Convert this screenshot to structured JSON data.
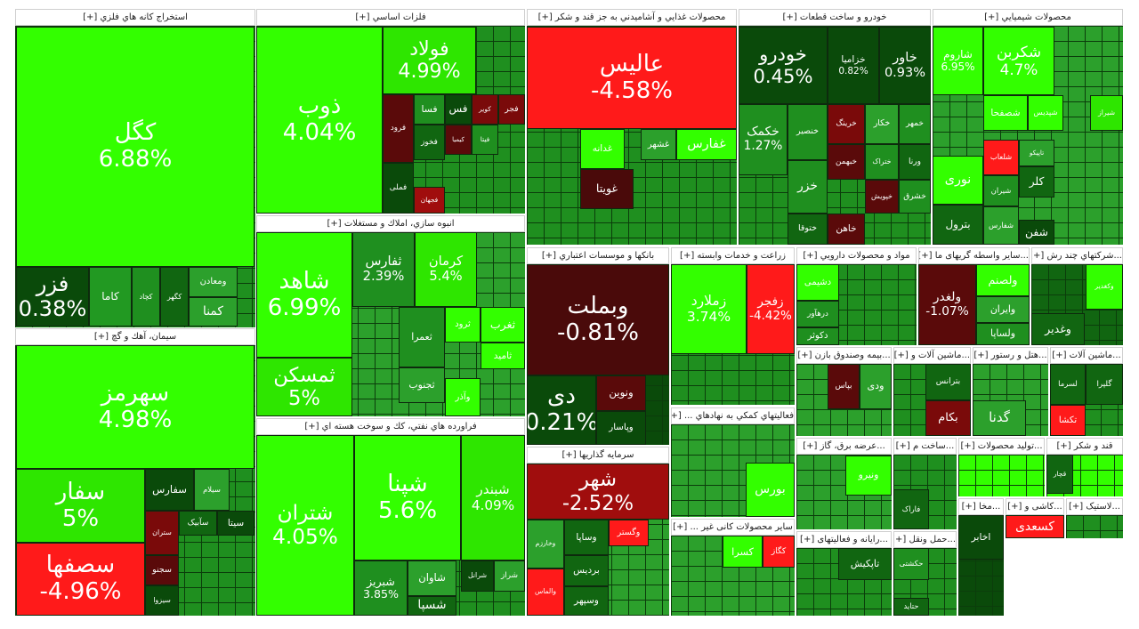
{
  "sectors": [
    {
      "title": "استخراج کانه هاي فلزي [+]",
      "tiles": [
        {
          "symbol": "کگل",
          "change": "6.88%",
          "color": "#33ff00"
        },
        {
          "symbol": "فزر",
          "change": "0.38%",
          "color": "#0a4a0a"
        },
        {
          "symbol": "کاما",
          "color": "#229922"
        },
        {
          "symbol": "کچاد",
          "color": "#1f8f1f"
        },
        {
          "symbol": "کگهر",
          "color": "#116611"
        },
        {
          "symbol": "ومعادن",
          "color": "#2ca02c"
        },
        {
          "symbol": "کمنا",
          "color": "#2ca02c"
        }
      ]
    },
    {
      "title": "سيمان، آهك و گچ [+]",
      "tiles": [
        {
          "symbol": "سهرمز",
          "change": "4.98%",
          "color": "#33ff00"
        },
        {
          "symbol": "سفار",
          "change": "5%",
          "color": "#2ee600"
        },
        {
          "symbol": "سصفها",
          "change": "-4.96%",
          "color": "#ff1a1a"
        },
        {
          "symbol": "سفارس",
          "color": "#0a4a0a"
        },
        {
          "symbol": "سیلام",
          "color": "#2ca02c"
        },
        {
          "symbol": "ستران",
          "color": "#7a0a0a"
        },
        {
          "symbol": "سآبیک",
          "color": "#116611"
        },
        {
          "symbol": "سیتا",
          "color": "#0a4a0a"
        },
        {
          "symbol": "سجنو",
          "color": "#5a0a0a"
        },
        {
          "symbol": "سیزوا",
          "color": "#0a4a0a"
        }
      ]
    },
    {
      "title": "فلزات اساسي [+]",
      "tiles": [
        {
          "symbol": "ذوب",
          "change": "4.04%",
          "color": "#33ff00"
        },
        {
          "symbol": "فولاد",
          "change": "4.99%",
          "color": "#2ee600"
        },
        {
          "symbol": "فرود",
          "color": "#5a0a0a"
        },
        {
          "symbol": "فسا",
          "color": "#1f8f1f"
        },
        {
          "symbol": "فخوز",
          "color": "#116611"
        },
        {
          "symbol": "فملی",
          "color": "#0a4a0a"
        },
        {
          "symbol": "فجهان",
          "color": "#a00d0d"
        },
        {
          "symbol": "فس",
          "color": "#0a4a0a"
        },
        {
          "symbol": "کویر",
          "color": "#7a0a0a"
        },
        {
          "symbol": "فجر",
          "color": "#7a0a0a"
        },
        {
          "symbol": "کیمیا",
          "color": "#5a0a0a"
        },
        {
          "symbol": "فیتا",
          "color": "#1f8f1f"
        }
      ]
    },
    {
      "title": "انبوه سازي، املاك و مستغلات [+]",
      "tiles": [
        {
          "symbol": "شاهد",
          "change": "6.99%",
          "color": "#33ff00"
        },
        {
          "symbol": "ثمسکن",
          "change": "5%",
          "color": "#2ee600"
        },
        {
          "symbol": "ثفارس",
          "change": "2.39%",
          "color": "#1f8f1f"
        },
        {
          "symbol": "کرمان",
          "change": "5.4%",
          "color": "#2ee600"
        },
        {
          "symbol": "ثعمرا",
          "color": "#1f8f1f"
        },
        {
          "symbol": "ثرود",
          "color": "#33ff00"
        },
        {
          "symbol": "ثغرب",
          "color": "#33ff00"
        },
        {
          "symbol": "ثامید",
          "color": "#33ff00"
        },
        {
          "symbol": "ثجنوب",
          "color": "#2ca02c"
        },
        {
          "symbol": "وآذر",
          "color": "#33ff00"
        }
      ]
    },
    {
      "title": "فراورده هاي نفتي، كك و سوخت هسته اي [+]",
      "tiles": [
        {
          "symbol": "شتران",
          "change": "4.05%",
          "color": "#33ff00"
        },
        {
          "symbol": "شپنا",
          "change": "5.6%",
          "color": "#33ff00"
        },
        {
          "symbol": "شبندر",
          "change": "4.09%",
          "color": "#2ee600"
        },
        {
          "symbol": "شبریز",
          "change": "3.85%",
          "color": "#1f8f1f"
        },
        {
          "symbol": "شاوان",
          "color": "#2ca02c"
        },
        {
          "symbol": "شسپا",
          "color": "#116611"
        },
        {
          "symbol": "شرانل",
          "color": "#0a4a0a"
        },
        {
          "symbol": "شراز",
          "color": "#2ca02c"
        }
      ]
    },
    {
      "title": "محصولات غذايي و آشاميدني به جز قند و شكر [+]",
      "tiles": [
        {
          "symbol": "عالیس",
          "change": "-4.58%",
          "color": "#ff1a1a"
        },
        {
          "symbol": "غدانه",
          "color": "#33ff00"
        },
        {
          "symbol": "غشهر",
          "color": "#2ca02c"
        },
        {
          "symbol": "غفارس",
          "color": "#33ff00"
        },
        {
          "symbol": "غویتا",
          "color": "#4a0a0a"
        }
      ]
    },
    {
      "title": "خودرو و ساخت قطعات [+]",
      "tiles": [
        {
          "symbol": "خودرو",
          "change": "0.45%",
          "color": "#0a4a0a"
        },
        {
          "symbol": "خزامیا",
          "change": "0.82%",
          "color": "#0a4a0a"
        },
        {
          "symbol": "خاور",
          "change": "0.93%",
          "color": "#0a4a0a"
        },
        {
          "symbol": "خکمک",
          "change": "1.27%",
          "color": "#1f8f1f"
        },
        {
          "symbol": "خنصیر",
          "color": "#1f8f1f"
        },
        {
          "symbol": "خرینگ",
          "color": "#7a0a0a"
        },
        {
          "symbol": "خکار",
          "color": "#2ca02c"
        },
        {
          "symbol": "خمهر",
          "color": "#1f8f1f"
        },
        {
          "symbol": "خبهمن",
          "color": "#5a0a0a"
        },
        {
          "symbol": "ختراک",
          "color": "#1f8f1f"
        },
        {
          "symbol": "ورنا",
          "color": "#116611"
        },
        {
          "symbol": "خزر",
          "color": "#1f8f1f"
        },
        {
          "symbol": "خپویش",
          "color": "#5a0a0a"
        },
        {
          "symbol": "خشرق",
          "color": "#1f8f1f"
        },
        {
          "symbol": "ختوقا",
          "color": "#116611"
        },
        {
          "symbol": "خاهن",
          "color": "#5a0a0a"
        }
      ]
    },
    {
      "title": "محصولات شيميايي [+]",
      "tiles": [
        {
          "symbol": "شاروم",
          "change": "6.95%",
          "color": "#33ff00"
        },
        {
          "symbol": "شکربن",
          "change": "4.7%",
          "color": "#33ff00"
        },
        {
          "symbol": "شصفحا",
          "color": "#33ff00"
        },
        {
          "symbol": "شپدیس",
          "color": "#33ff00"
        },
        {
          "symbol": "شیراز",
          "color": "#2ee600"
        },
        {
          "symbol": "نوری",
          "color": "#33ff00"
        },
        {
          "symbol": "شلعاب",
          "color": "#ff1a1a"
        },
        {
          "symbol": "تاپیکو",
          "color": "#2ca02c"
        },
        {
          "symbol": "شیران",
          "color": "#1f8f1f"
        },
        {
          "symbol": "کلر",
          "color": "#116611"
        },
        {
          "symbol": "بترول",
          "color": "#116611"
        },
        {
          "symbol": "شفارس",
          "color": "#2ca02c"
        },
        {
          "symbol": "شفن",
          "color": "#0a4a0a"
        }
      ]
    },
    {
      "title": "بانكها و موسسات اعتباري [+]",
      "tiles": [
        {
          "symbol": "وبملت",
          "change": "-0.81%",
          "color": "#4a0a0a"
        },
        {
          "symbol": "دی",
          "change": "0.21%",
          "color": "#0a4a0a"
        },
        {
          "symbol": "ونوین",
          "color": "#5a0a0a"
        },
        {
          "symbol": "وپاسار",
          "color": "#0a4a0a"
        }
      ]
    },
    {
      "title": "سرمايه گذاريها [+]",
      "tiles": [
        {
          "symbol": "شهر",
          "change": "-2.52%",
          "color": "#a00d0d"
        },
        {
          "symbol": "وخارزم",
          "color": "#2ca02c"
        },
        {
          "symbol": "والماس",
          "color": "#ff1a1a"
        },
        {
          "symbol": "وساپا",
          "color": "#116611"
        },
        {
          "symbol": "وگستر",
          "color": "#ff1a1a"
        },
        {
          "symbol": "بردیس",
          "color": "#116611"
        },
        {
          "symbol": "وسپهر",
          "color": "#116611"
        }
      ]
    },
    {
      "title": "زراعت و خدمات وابسته [+]",
      "tiles": [
        {
          "symbol": "زملارد",
          "change": "3.74%",
          "color": "#33ff00"
        },
        {
          "symbol": "زفجر",
          "change": "-4.42%",
          "color": "#ff1a1a"
        }
      ]
    },
    {
      "title": "فعاليتهاي كمكي به نهادهاي ... [+]",
      "tiles": [
        {
          "symbol": "بورس",
          "color": "#33ff00"
        }
      ]
    },
    {
      "title": "سایر محصولات کانی غیر ... [+]",
      "tiles": [
        {
          "symbol": "کسرا",
          "color": "#33ff00"
        },
        {
          "symbol": "کگاز",
          "color": "#ff1a1a"
        }
      ]
    },
    {
      "title": "مواد و محصولات دارويي [+]",
      "tiles": [
        {
          "symbol": "دشیمی",
          "color": "#33ff00"
        },
        {
          "symbol": "درهآور",
          "color": "#1f8f1f"
        },
        {
          "symbol": "دکوثر",
          "color": "#1f8f1f"
        }
      ]
    },
    {
      "title": "...سایر واسطه گریهای ما [+]",
      "tiles": [
        {
          "symbol": "ولغدر",
          "change": "-1.07%",
          "color": "#5a0a0a"
        },
        {
          "symbol": "ولصنم",
          "color": "#33ff00"
        },
        {
          "symbol": "وایران",
          "color": "#2ca02c"
        },
        {
          "symbol": "ولساپا",
          "color": "#1f8f1f"
        }
      ]
    },
    {
      "title": "...شركتهاي چند رش [+]",
      "tiles": [
        {
          "symbol": "وکغدیر",
          "color": "#33ff00"
        },
        {
          "symbol": "وغدیر",
          "color": "#116611"
        }
      ]
    },
    {
      "title": "...بیمه وصندوق بازن [+]",
      "tiles": [
        {
          "symbol": "بپاس",
          "color": "#5a0a0a"
        },
        {
          "symbol": "ودی",
          "color": "#2ca02c"
        }
      ]
    },
    {
      "title": "...ماشین آلات و [+]",
      "tiles": [
        {
          "symbol": "بترانس",
          "color": "#116611"
        },
        {
          "symbol": "بکام",
          "color": "#7a0a0a"
        }
      ]
    },
    {
      "title": "...هتل و رستور [+]",
      "tiles": [
        {
          "symbol": "گدنا",
          "color": "#2ca02c"
        }
      ]
    },
    {
      "title": "...ماشین آلات [+]",
      "tiles": [
        {
          "symbol": "لسرما",
          "color": "#116611"
        },
        {
          "symbol": "گلپرا",
          "color": "#116611"
        },
        {
          "symbol": "تکشا",
          "color": "#ff1a1a"
        }
      ]
    },
    {
      "title": "...عرضه برق، گاز [+]",
      "tiles": [
        {
          "symbol": "ونیرو",
          "color": "#33ff00"
        }
      ]
    },
    {
      "title": "...ساخت م [+]",
      "tiles": [
        {
          "symbol": "فاراک",
          "color": "#116611"
        }
      ]
    },
    {
      "title": "...تولید محصولات [+]",
      "tiles": []
    },
    {
      "title": "قند و شکر [+]",
      "tiles": [
        {
          "symbol": "قچار",
          "color": "#116611"
        }
      ]
    },
    {
      "title": "...رایانه و فعالیتهای [+]",
      "tiles": [
        {
          "symbol": "تاپکیش",
          "color": "#116611"
        }
      ]
    },
    {
      "title": "...حمل ونقل [+]",
      "tiles": [
        {
          "symbol": "حکشتی",
          "color": "#1f8f1f"
        },
        {
          "symbol": "حتاید",
          "color": "#116611"
        }
      ]
    },
    {
      "title": "...مخا [+]",
      "tiles": [
        {
          "symbol": "اخابر",
          "color": "#0a4a0a"
        }
      ]
    },
    {
      "title": "...کاشی و [+]",
      "tiles": [
        {
          "symbol": "کسعدی",
          "color": "#ff1a1a"
        }
      ]
    },
    {
      "title": "...لاستیک [+]",
      "tiles": []
    }
  ]
}
